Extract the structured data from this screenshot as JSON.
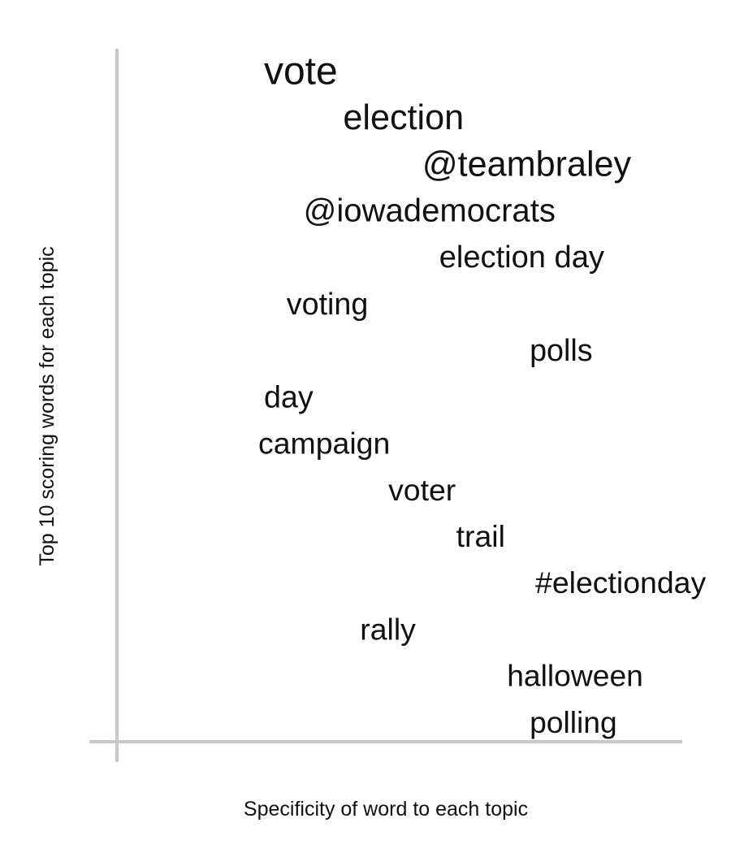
{
  "chart_data": {
    "type": "scatter",
    "xlabel": "Specificity of word to each topic",
    "ylabel": "Top 10 scoring words for each topic",
    "grid": false,
    "colors": {
      "axis": "#c8c8c8",
      "text": "#111111"
    },
    "points": [
      {
        "word": "vote",
        "x": 0.26,
        "y": 1,
        "weight": 1.0
      },
      {
        "word": "election",
        "x": 0.4,
        "y": 2,
        "weight": 0.78
      },
      {
        "word": "@teambraley",
        "x": 0.54,
        "y": 3,
        "weight": 0.78
      },
      {
        "word": "@iowademocrats",
        "x": 0.33,
        "y": 4,
        "weight": 0.64
      },
      {
        "word": "election day",
        "x": 0.57,
        "y": 5,
        "weight": 0.55
      },
      {
        "word": "voting",
        "x": 0.3,
        "y": 6,
        "weight": 0.53
      },
      {
        "word": "polls",
        "x": 0.73,
        "y": 7,
        "weight": 0.53
      },
      {
        "word": "day",
        "x": 0.26,
        "y": 8,
        "weight": 0.53
      },
      {
        "word": "campaign",
        "x": 0.25,
        "y": 9,
        "weight": 0.52
      },
      {
        "word": "voter",
        "x": 0.48,
        "y": 10,
        "weight": 0.52
      },
      {
        "word": "trail",
        "x": 0.6,
        "y": 11,
        "weight": 0.52
      },
      {
        "word": "#electionday",
        "x": 0.74,
        "y": 12,
        "weight": 0.52
      },
      {
        "word": "rally",
        "x": 0.43,
        "y": 13,
        "weight": 0.52
      },
      {
        "word": "halloween",
        "x": 0.69,
        "y": 14,
        "weight": 0.51
      },
      {
        "word": "polling",
        "x": 0.73,
        "y": 15,
        "weight": 0.51
      }
    ]
  }
}
